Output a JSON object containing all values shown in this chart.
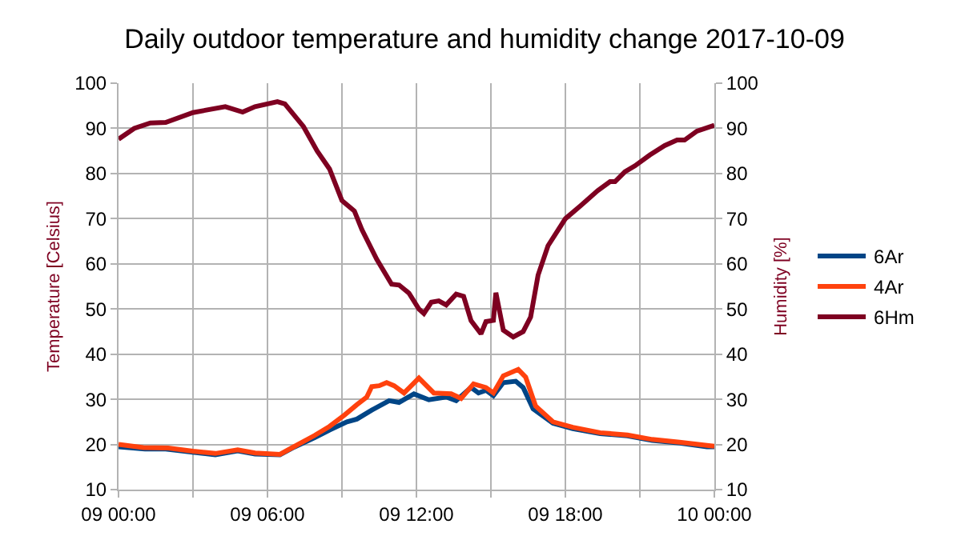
{
  "chart_data": {
    "type": "line",
    "title": "Daily outdoor temperature and humidity change 2017-10-09",
    "ylabel": "Temperature [Celsius]",
    "y2label": "Humidity [%]",
    "xlim": [
      "2017-10-09T00:00",
      "2017-10-10T00:00"
    ],
    "xticks": [
      {
        "value": "2017-10-09T00:00",
        "label": "09 00:00"
      },
      {
        "value": "2017-10-09T03:00",
        "label": null
      },
      {
        "value": "2017-10-09T06:00",
        "label": "09 06:00"
      },
      {
        "value": "2017-10-09T09:00",
        "label": null
      },
      {
        "value": "2017-10-09T12:00",
        "label": "09 12:00"
      },
      {
        "value": "2017-10-09T15:00",
        "label": null
      },
      {
        "value": "2017-10-09T18:00",
        "label": "09 18:00"
      },
      {
        "value": "2017-10-09T21:00",
        "label": null
      },
      {
        "value": "2017-10-10T00:00",
        "label": "10 00:00"
      }
    ],
    "ylim": [
      10,
      100
    ],
    "yticks": [
      10,
      20,
      30,
      40,
      50,
      60,
      70,
      80,
      90,
      100
    ],
    "y2lim": [
      10,
      100
    ],
    "y2ticks": [
      10,
      20,
      30,
      40,
      50,
      60,
      70,
      80,
      90,
      100
    ],
    "grid": true,
    "legend": "right",
    "marker": "none",
    "line_style": "solid",
    "series": [
      {
        "name": "6Ar",
        "color": "#004586",
        "x": [
          "2017-10-09T00:00",
          "2017-10-09T01:04",
          "2017-10-09T01:54",
          "2017-10-09T02:59",
          "2017-10-09T03:54",
          "2017-10-09T04:48",
          "2017-10-09T05:30",
          "2017-10-09T06:30",
          "2017-10-09T07:00",
          "2017-10-09T07:54",
          "2017-10-09T08:30",
          "2017-10-09T09:12",
          "2017-10-09T09:36",
          "2017-10-09T10:12",
          "2017-10-09T10:54",
          "2017-10-09T11:18",
          "2017-10-09T11:54",
          "2017-10-09T12:30",
          "2017-10-09T13:12",
          "2017-10-09T13:36",
          "2017-10-09T14:12",
          "2017-10-09T14:30",
          "2017-10-09T14:48",
          "2017-10-09T15:06",
          "2017-10-09T15:30",
          "2017-10-09T16:00",
          "2017-10-09T16:18",
          "2017-10-09T16:42",
          "2017-10-09T17:30",
          "2017-10-09T18:18",
          "2017-10-09T19:24",
          "2017-10-09T20:30",
          "2017-10-09T21:30",
          "2017-10-09T22:36",
          "2017-10-09T23:42",
          "2017-10-10T00:00"
        ],
        "values": [
          19.5,
          19,
          19,
          18.3,
          17.7,
          18.6,
          17.9,
          17.7,
          19.2,
          21.5,
          23.2,
          25,
          25.6,
          27.6,
          29.7,
          29.3,
          31.2,
          29.9,
          30.5,
          29.7,
          32.6,
          31.4,
          32,
          30.8,
          33.7,
          34,
          32.6,
          27.9,
          24.7,
          23.5,
          22.4,
          21.9,
          20.9,
          20.3,
          19.5,
          19.5
        ]
      },
      {
        "name": "4Ar",
        "color": "#ff420e",
        "x": [
          "2017-10-09T00:00",
          "2017-10-09T01:00",
          "2017-10-09T02:00",
          "2017-10-09T03:00",
          "2017-10-09T03:54",
          "2017-10-09T04:48",
          "2017-10-09T05:30",
          "2017-10-09T06:30",
          "2017-10-09T07:00",
          "2017-10-09T07:54",
          "2017-10-09T08:30",
          "2017-10-09T09:06",
          "2017-10-09T09:36",
          "2017-10-09T10:00",
          "2017-10-09T10:12",
          "2017-10-09T10:30",
          "2017-10-09T10:48",
          "2017-10-09T11:06",
          "2017-10-09T11:30",
          "2017-10-09T12:06",
          "2017-10-09T12:42",
          "2017-10-09T13:24",
          "2017-10-09T13:48",
          "2017-10-09T14:18",
          "2017-10-09T14:48",
          "2017-10-09T15:06",
          "2017-10-09T15:30",
          "2017-10-09T16:06",
          "2017-10-09T16:24",
          "2017-10-09T16:48",
          "2017-10-09T17:30",
          "2017-10-09T18:18",
          "2017-10-09T19:24",
          "2017-10-09T20:30",
          "2017-10-09T21:30",
          "2017-10-09T22:36",
          "2017-10-09T23:42",
          "2017-10-10T00:00"
        ],
        "values": [
          20,
          19.3,
          19.2,
          18.5,
          18,
          18.8,
          18.1,
          17.8,
          19.3,
          22,
          24,
          26.5,
          28.8,
          30.5,
          32.8,
          33,
          33.7,
          33,
          31.4,
          34.7,
          31.4,
          31.2,
          30.2,
          33.4,
          32.6,
          31.4,
          35.2,
          36.6,
          34.9,
          28.5,
          25,
          23.8,
          22.6,
          22.1,
          21.1,
          20.5,
          19.8,
          19.6
        ]
      },
      {
        "name": "6Hm",
        "color": "#7e0021",
        "axis": "y2",
        "x": [
          "2017-10-09T00:00",
          "2017-10-09T00:38",
          "2017-10-09T01:17",
          "2017-10-09T01:54",
          "2017-10-09T03:00",
          "2017-10-09T04:18",
          "2017-10-09T05:00",
          "2017-10-09T05:30",
          "2017-10-09T06:24",
          "2017-10-09T06:42",
          "2017-10-09T07:27",
          "2017-10-09T08:00",
          "2017-10-09T08:30",
          "2017-10-09T09:00",
          "2017-10-09T09:30",
          "2017-10-09T09:48",
          "2017-10-09T10:24",
          "2017-10-09T11:00",
          "2017-10-09T11:18",
          "2017-10-09T11:42",
          "2017-10-09T12:06",
          "2017-10-09T12:18",
          "2017-10-09T12:36",
          "2017-10-09T12:54",
          "2017-10-09T13:12",
          "2017-10-09T13:36",
          "2017-10-09T13:54",
          "2017-10-09T14:12",
          "2017-10-09T14:36",
          "2017-10-09T14:48",
          "2017-10-09T15:06",
          "2017-10-09T15:12",
          "2017-10-09T15:30",
          "2017-10-09T15:54",
          "2017-10-09T16:18",
          "2017-10-09T16:36",
          "2017-10-09T16:54",
          "2017-10-09T17:18",
          "2017-10-09T18:00",
          "2017-10-09T18:36",
          "2017-10-09T19:18",
          "2017-10-09T19:48",
          "2017-10-09T20:00",
          "2017-10-09T20:24",
          "2017-10-09T20:48",
          "2017-10-09T21:24",
          "2017-10-09T22:00",
          "2017-10-09T22:30",
          "2017-10-09T22:48",
          "2017-10-09T23:18",
          "2017-10-10T00:00"
        ],
        "values": [
          87.6,
          90,
          91.2,
          91.3,
          93.5,
          94.8,
          93.6,
          94.8,
          95.9,
          95.4,
          90.4,
          85,
          81,
          74,
          71.7,
          67.6,
          61,
          55.5,
          55.3,
          53.5,
          50,
          49,
          51.5,
          51.8,
          50.9,
          53.3,
          52.8,
          47.4,
          44.5,
          47.2,
          47.5,
          53.6,
          45.3,
          43.8,
          45,
          48.2,
          57.5,
          64,
          70,
          72.8,
          76.2,
          78.2,
          78.2,
          80.4,
          81.7,
          84.1,
          86.2,
          87.4,
          87.4,
          89.4,
          90.7
        ]
      }
    ]
  }
}
